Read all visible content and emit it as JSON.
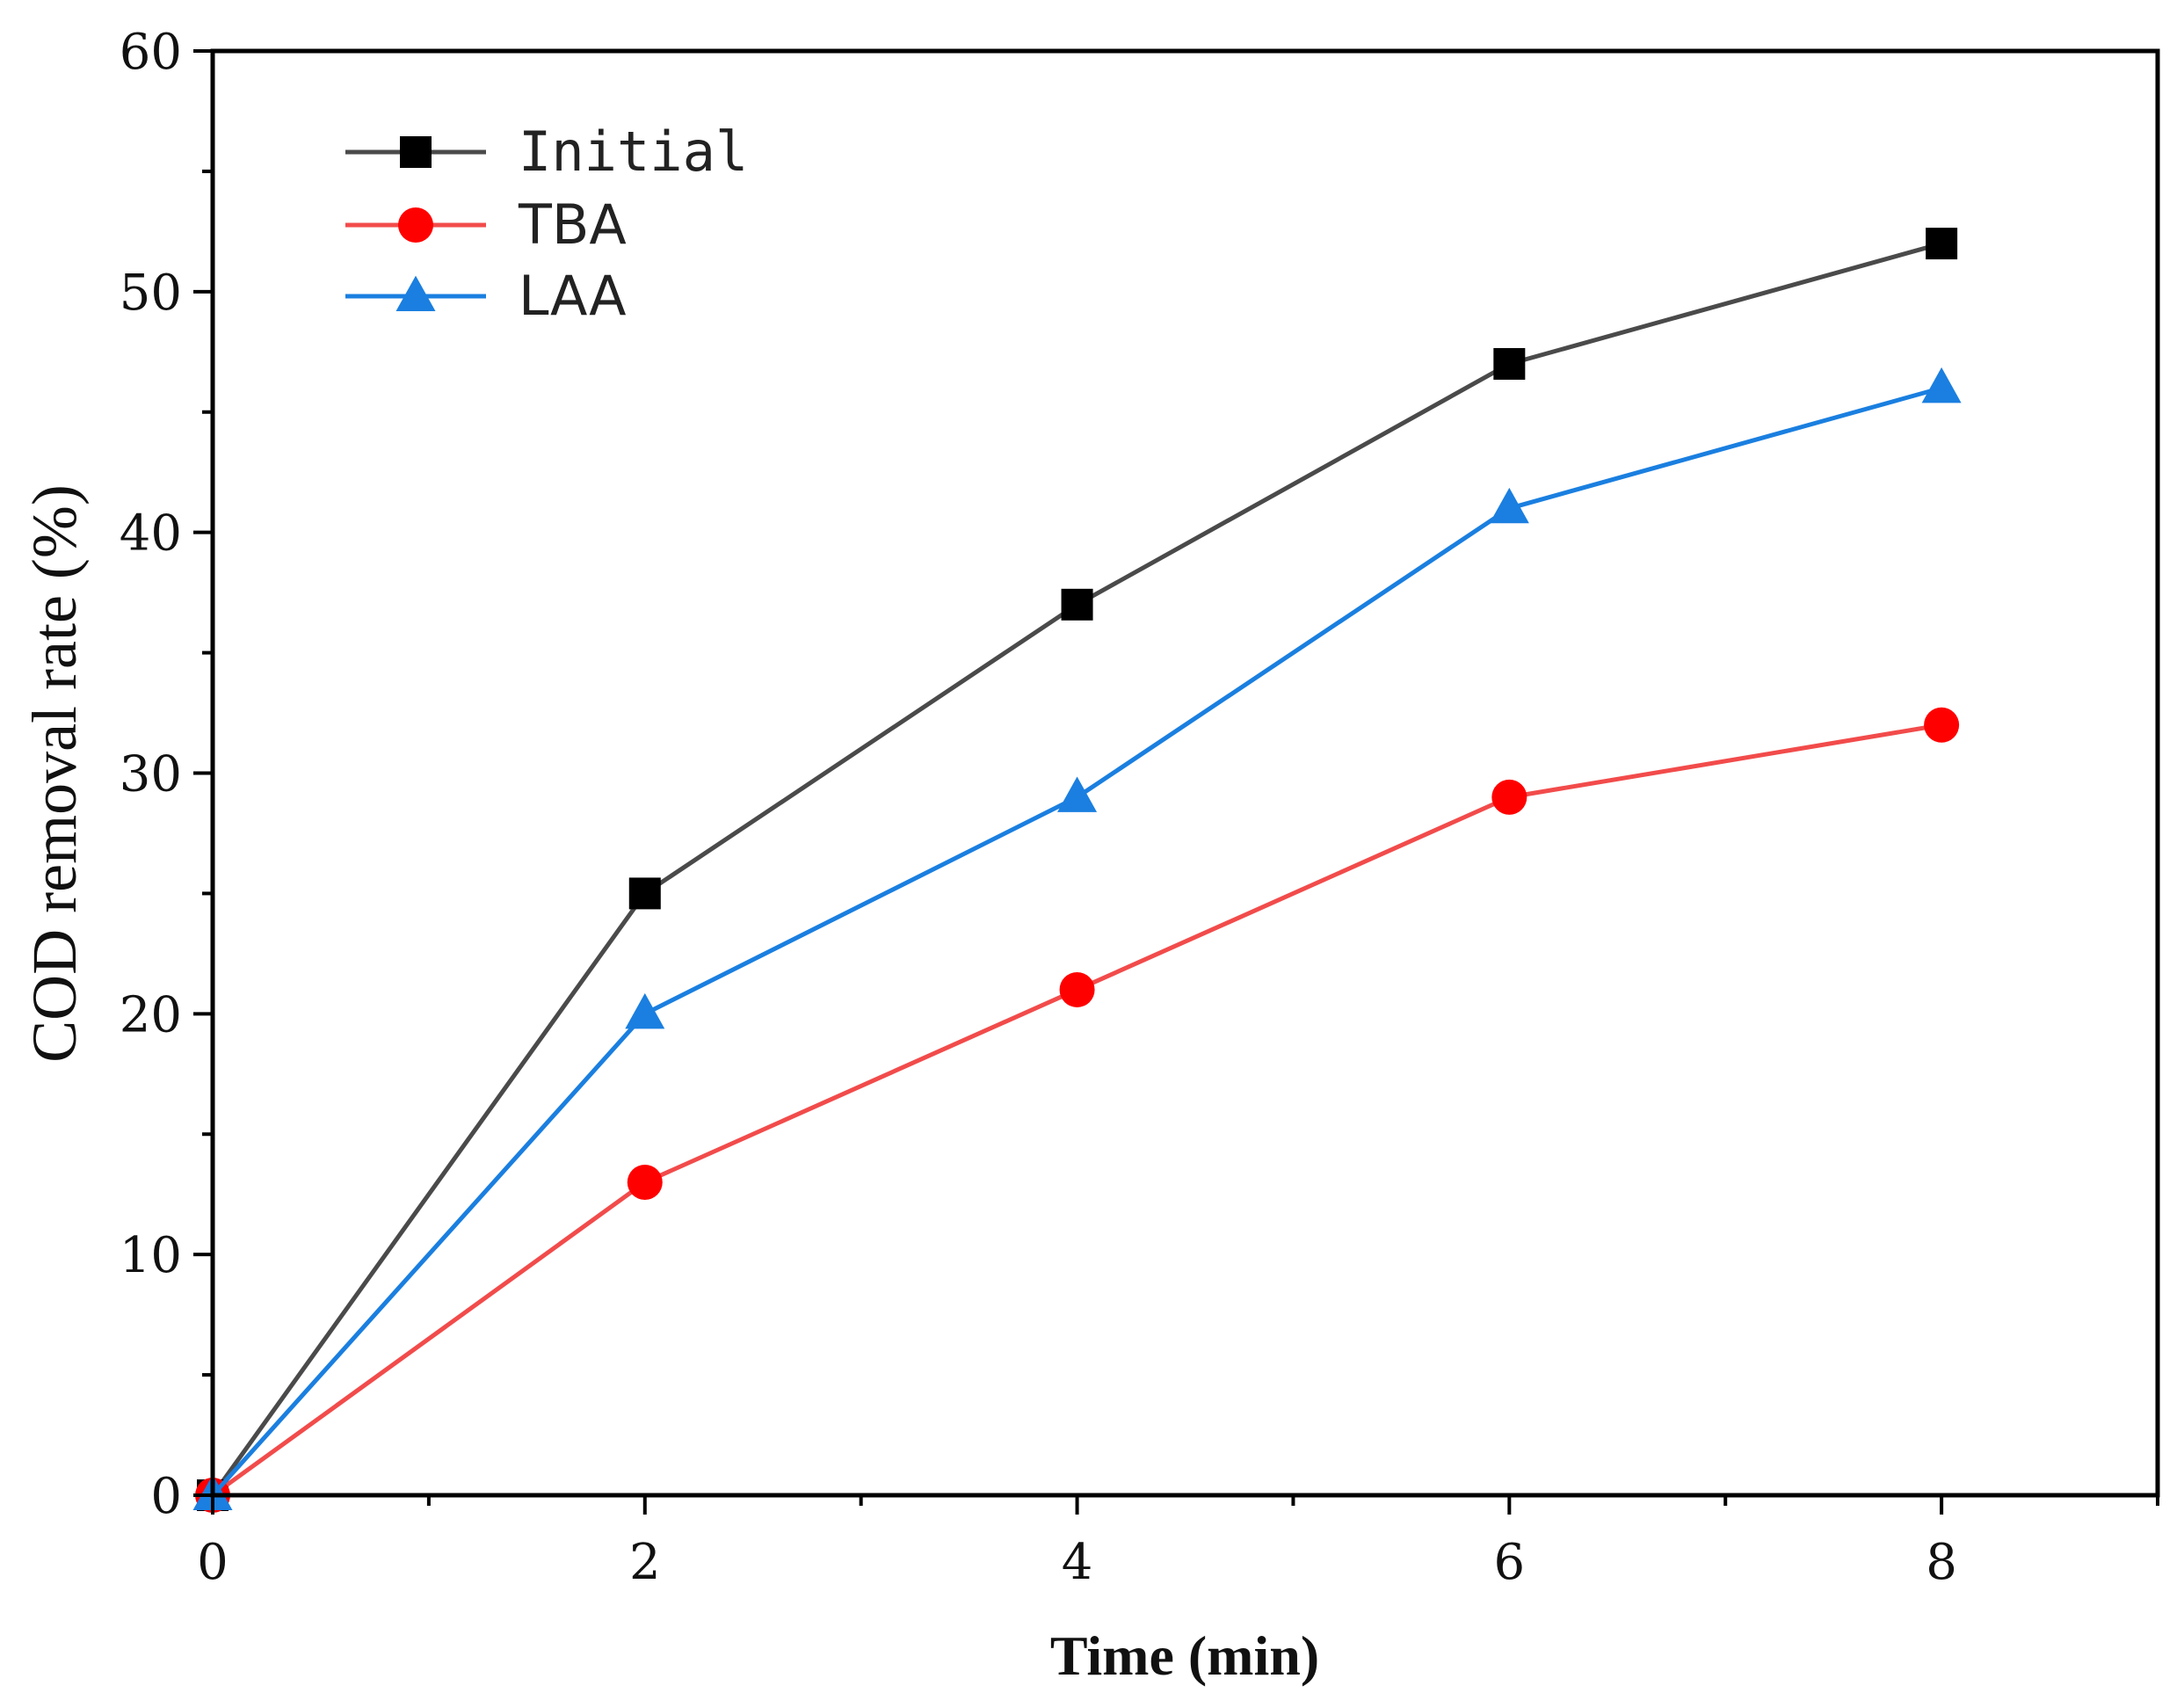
{
  "chart_data": {
    "type": "line",
    "title": "",
    "xlabel": "Time (min)",
    "ylabel": "COD removal rate (%)",
    "xlim": [
      0,
      9
    ],
    "ylim": [
      0,
      60
    ],
    "x_ticks": [
      0,
      2,
      4,
      6,
      8
    ],
    "x_tick_labels": [
      "0",
      "2",
      "4",
      "6",
      "8"
    ],
    "x_minor_ticks": [
      1,
      3,
      5,
      7,
      9
    ],
    "y_ticks": [
      0,
      10,
      20,
      30,
      40,
      50,
      60
    ],
    "y_tick_labels": [
      "0",
      "10",
      "20",
      "30",
      "40",
      "50",
      "60"
    ],
    "y_minor_ticks": [
      5,
      15,
      25,
      35,
      45,
      55
    ],
    "grid": false,
    "legend_position": "top-left",
    "x": [
      0,
      2,
      4,
      6,
      8
    ],
    "series": [
      {
        "name": "Initial",
        "values": [
          0,
          25,
          37,
          47,
          52
        ],
        "color": "#4a4a4a",
        "marker_color": "#000000",
        "marker": "square"
      },
      {
        "name": "TBA",
        "values": [
          0,
          13,
          21,
          29,
          32
        ],
        "color": "#f24b4b",
        "marker_color": "#ff0000",
        "marker": "circle"
      },
      {
        "name": "LAA",
        "values": [
          0,
          20,
          29,
          41,
          46
        ],
        "color": "#1a7fe0",
        "marker_color": "#1a7fe0",
        "marker": "triangle"
      }
    ]
  }
}
